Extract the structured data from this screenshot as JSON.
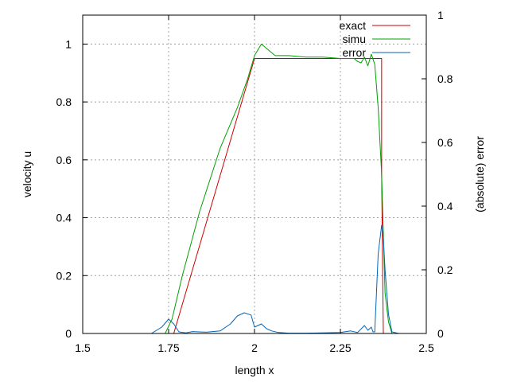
{
  "chart_data": {
    "type": "line",
    "xlabel": "length x",
    "ylabel": "velocity u",
    "y2label": "(absolute) error",
    "xlim": [
      1.5,
      2.5
    ],
    "ylim": [
      0,
      1.1
    ],
    "y2lim": [
      0,
      1
    ],
    "grid": true,
    "legend_position": "top-right",
    "x_ticks": [
      {
        "value": 1.5,
        "label": "1.5"
      },
      {
        "value": 1.75,
        "label": "1.75"
      },
      {
        "value": 2.0,
        "label": "2"
      },
      {
        "value": 2.25,
        "label": "2.25"
      },
      {
        "value": 2.5,
        "label": "2.5"
      }
    ],
    "y_ticks": [
      {
        "value": 0,
        "label": "0"
      },
      {
        "value": 0.2,
        "label": "0.2"
      },
      {
        "value": 0.4,
        "label": "0.4"
      },
      {
        "value": 0.6,
        "label": "0.6"
      },
      {
        "value": 0.8,
        "label": "0.8"
      },
      {
        "value": 1.0,
        "label": "1"
      }
    ],
    "y2_ticks": [
      {
        "value": 0,
        "label": "0"
      },
      {
        "value": 0.2,
        "label": "0.2"
      },
      {
        "value": 0.4,
        "label": "0.4"
      },
      {
        "value": 0.6,
        "label": "0.6"
      },
      {
        "value": 0.8,
        "label": "0.8"
      },
      {
        "value": 1.0,
        "label": "1"
      }
    ],
    "series": [
      {
        "name": "exact",
        "color": "#cc0000",
        "axis": "y",
        "x": [
          1.5,
          1.765,
          2.0,
          2.37,
          2.37,
          2.375,
          2.5
        ],
        "y": [
          0,
          0,
          0.95,
          0.95,
          0.55,
          0,
          0
        ]
      },
      {
        "name": "simu",
        "color": "#00a000",
        "axis": "y",
        "x": [
          1.5,
          1.74,
          1.76,
          1.79,
          1.84,
          1.9,
          1.95,
          1.98,
          2.0,
          2.02,
          2.04,
          2.06,
          2.1,
          2.15,
          2.2,
          2.25,
          2.29,
          2.3,
          2.31,
          2.32,
          2.33,
          2.34,
          2.35,
          2.36,
          2.37,
          2.375,
          2.38,
          2.39,
          2.4,
          2.5
        ],
        "y": [
          0,
          0,
          0.05,
          0.2,
          0.42,
          0.64,
          0.78,
          0.88,
          0.96,
          1.0,
          0.98,
          0.96,
          0.96,
          0.955,
          0.955,
          0.95,
          0.95,
          0.94,
          0.935,
          0.955,
          0.925,
          0.965,
          0.93,
          0.78,
          0.55,
          0.35,
          0.14,
          0.04,
          0,
          0
        ]
      },
      {
        "name": "error",
        "color": "#0066bb",
        "axis": "y2",
        "x": [
          1.5,
          1.7,
          1.73,
          1.75,
          1.765,
          1.78,
          1.8,
          1.82,
          1.86,
          1.9,
          1.93,
          1.95,
          1.97,
          1.99,
          2.0,
          2.02,
          2.035,
          2.05,
          2.07,
          2.1,
          2.15,
          2.2,
          2.25,
          2.28,
          2.3,
          2.32,
          2.33,
          2.34,
          2.345,
          2.35,
          2.36,
          2.37,
          2.375,
          2.38,
          2.39,
          2.4,
          2.42,
          2.43
        ],
        "y": [
          0,
          0,
          0.02,
          0.045,
          0.03,
          0.005,
          0.002,
          0.006,
          0.004,
          0.008,
          0.03,
          0.055,
          0.065,
          0.058,
          0.02,
          0.03,
          0.015,
          0.008,
          0.003,
          0.001,
          0.001,
          0.002,
          0.003,
          0.008,
          0.003,
          0.025,
          0.01,
          0.02,
          0.005,
          0.005,
          0.25,
          0.34,
          0.3,
          0.2,
          0.06,
          0.005,
          0.0,
          0.0
        ]
      }
    ]
  }
}
